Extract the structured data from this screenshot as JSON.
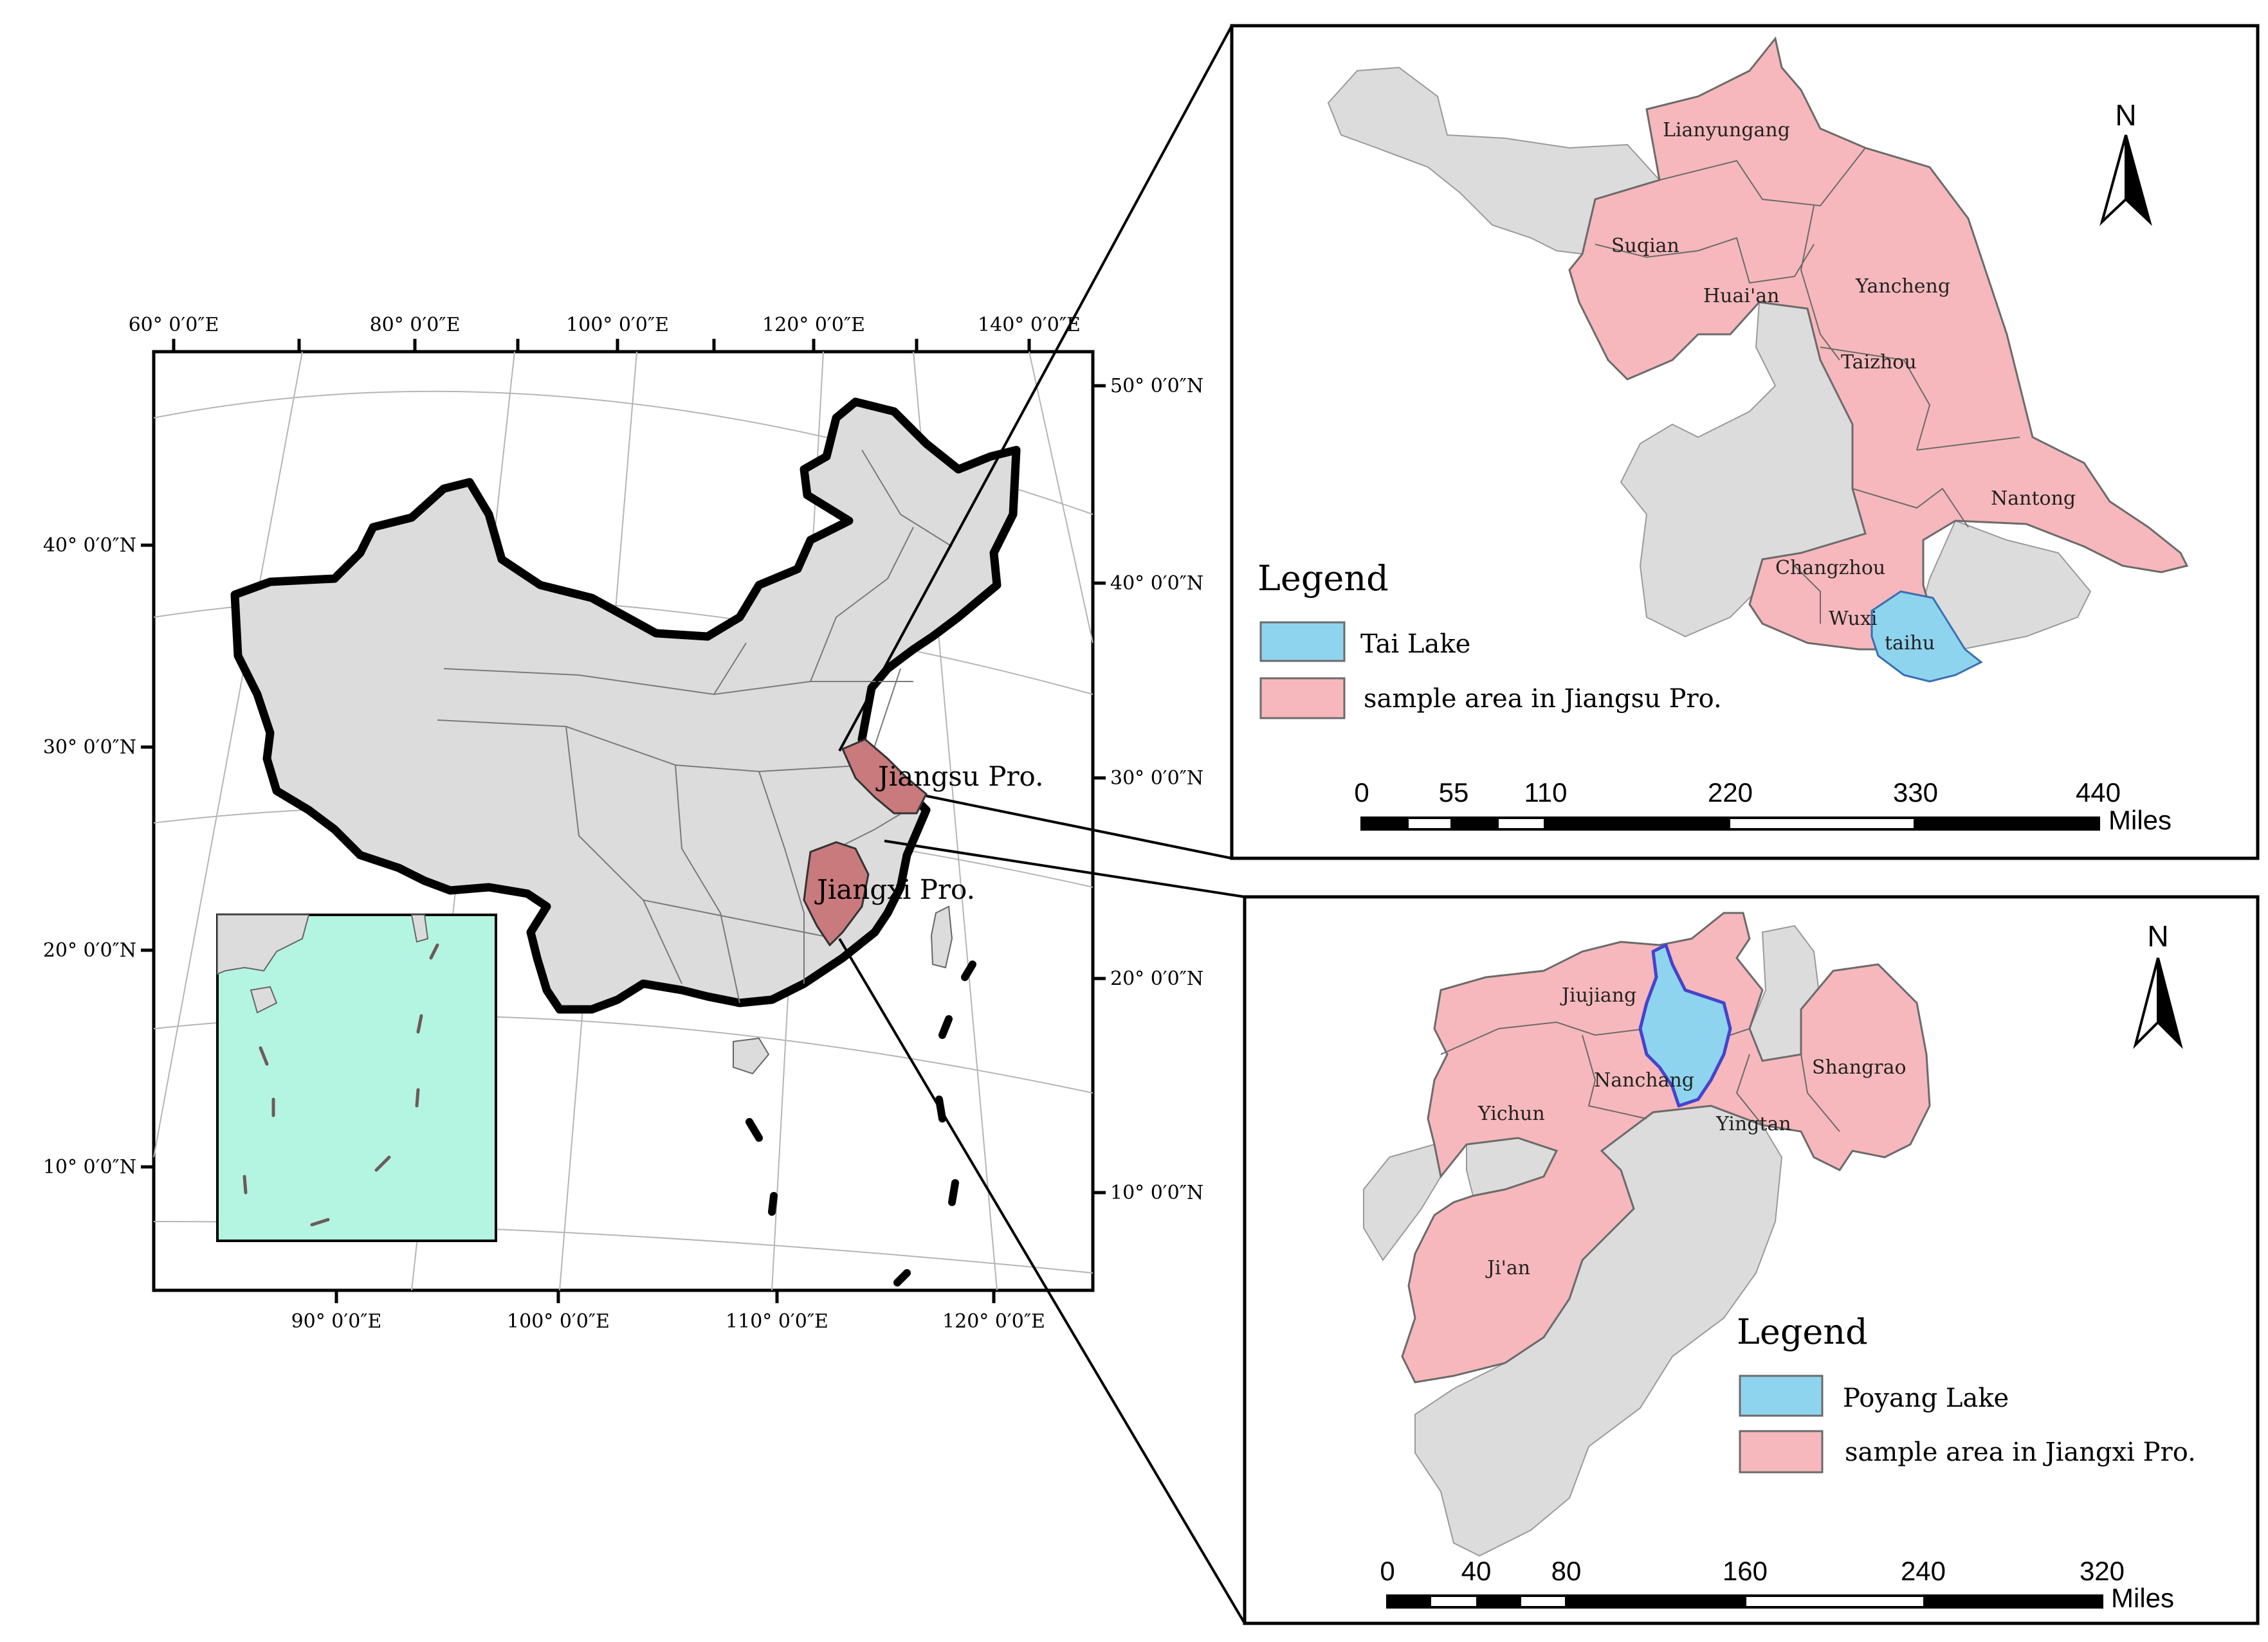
{
  "main_map": {
    "lon_labels_top": [
      "60° 0′0″E",
      "80° 0′0″E",
      "100° 0′0″E",
      "120° 0′0″E",
      "140° 0′0″E"
    ],
    "lon_labels_bottom": [
      "90° 0′0″E",
      "100° 0′0″E",
      "110° 0′0″E",
      "120° 0′0″E"
    ],
    "lat_labels_left": [
      "40° 0′0″N",
      "30° 0′0″N",
      "20° 0′0″N",
      "10° 0′0″N"
    ],
    "lat_labels_right": [
      "50° 0′0″N",
      "40° 0′0″N",
      "30° 0′0″N",
      "20° 0′0″N",
      "10° 0′0″N"
    ],
    "province_labels": [
      "Jiangsu Pro.",
      "Jiangxi Pro."
    ]
  },
  "jiangsu_map": {
    "north_label": "N",
    "cities": [
      "Lianyungang",
      "Suqian",
      "Huai'an",
      "Yancheng",
      "Taizhou",
      "Nantong",
      "Changzhou",
      "Wuxi",
      "taihu"
    ],
    "legend": {
      "title": "Legend",
      "items": [
        {
          "label": "Tai Lake",
          "color": "#8fd4ee"
        },
        {
          "label": "sample area in Jiangsu Pro.",
          "color": "#f6b8bc"
        }
      ]
    },
    "scale": {
      "ticks": [
        "0",
        "55",
        "110",
        "220",
        "330",
        "440"
      ],
      "unit": "Miles"
    }
  },
  "jiangxi_map": {
    "north_label": "N",
    "cities": [
      "Jiujiang",
      "Nanchang",
      "Shangrao",
      "Yichun",
      "Yingtan",
      "Ji'an"
    ],
    "legend": {
      "title": "Legend",
      "items": [
        {
          "label": "Poyang Lake",
          "color": "#8fd4ee"
        },
        {
          "label": "sample area in Jiangxi Pro.",
          "color": "#f6b8bc"
        }
      ]
    },
    "scale": {
      "ticks": [
        "0",
        "40",
        "80",
        "160",
        "240",
        "320"
      ],
      "unit": "Miles"
    }
  },
  "colors": {
    "land_gray": "#dcdcdc",
    "sample_pink": "#f6b8bc",
    "highlight_red": "#c97a7c",
    "lake_blue": "#8fd4ee",
    "inset_sea": "#b3f5e0"
  }
}
